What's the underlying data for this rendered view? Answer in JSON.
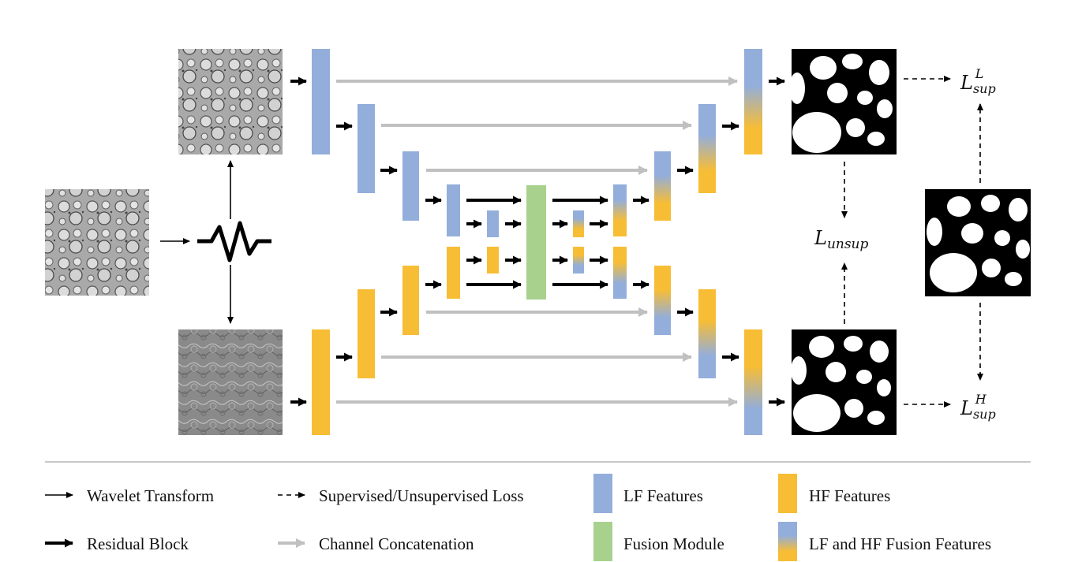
{
  "colors": {
    "lf": "#93aedb",
    "hf": "#f7bd35",
    "fusion": "#a9d18e",
    "skip": "#c0c0c0",
    "line": "#000000"
  },
  "losses": {
    "sup_low": {
      "base": "L",
      "sub": "sup",
      "sup": "L"
    },
    "sup_high": {
      "base": "L",
      "sub": "sup",
      "sup": "H"
    },
    "unsup": {
      "base": "L",
      "sub": "unsup"
    }
  },
  "legend": {
    "wavelet": "Wavelet Transform",
    "loss": "Supervised/Unsupervised Loss",
    "lf": "LF Features",
    "hf": "HF Features",
    "residual": "Residual Block",
    "concat": "Channel Concatenation",
    "fusion_module": "Fusion Module",
    "lf_hf_fusion": "LF and HF Fusion Features"
  },
  "icons": {
    "wavelet": "wavelet-transform-icon",
    "input": "histology-input-image",
    "low_freq": "low-frequency-image",
    "high_freq": "high-frequency-image",
    "prediction": "segmentation-mask"
  }
}
